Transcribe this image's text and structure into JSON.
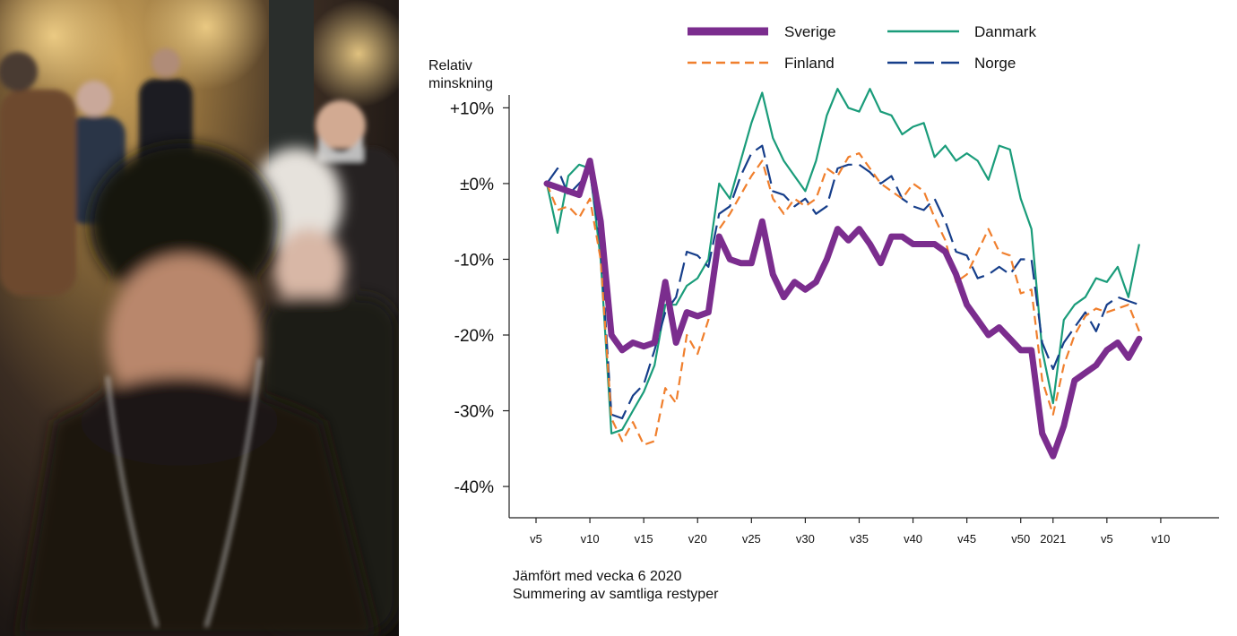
{
  "chart_data": {
    "type": "line",
    "ylabel": [
      "Relativ",
      "minskning"
    ],
    "ylim": [
      -42,
      13
    ],
    "xlim": [
      5,
      68
    ],
    "yticks": [
      {
        "value": 10,
        "label": "+10%"
      },
      {
        "value": 0,
        "label": "±0%"
      },
      {
        "value": -10,
        "label": "-10%"
      },
      {
        "value": -20,
        "label": "-20%"
      },
      {
        "value": -30,
        "label": "-30%"
      },
      {
        "value": -40,
        "label": "-40%"
      }
    ],
    "xticks": [
      {
        "value": 5,
        "label": "v5"
      },
      {
        "value": 10,
        "label": "v10"
      },
      {
        "value": 15,
        "label": "v15"
      },
      {
        "value": 20,
        "label": "v20"
      },
      {
        "value": 25,
        "label": "v25"
      },
      {
        "value": 30,
        "label": "v30"
      },
      {
        "value": 35,
        "label": "v35"
      },
      {
        "value": 40,
        "label": "v40"
      },
      {
        "value": 45,
        "label": "v45"
      },
      {
        "value": 50,
        "label": "v50"
      },
      {
        "value": 53,
        "label": "2021"
      },
      {
        "value": 58,
        "label": "v5"
      },
      {
        "value": 63,
        "label": "v10"
      }
    ],
    "legend_placement": "top",
    "grid": false,
    "series": [
      {
        "name": "Sverige",
        "color": "#7b2d8e",
        "style": "solid",
        "points": [
          [
            6,
            0
          ],
          [
            7,
            -0.5
          ],
          [
            8,
            -1
          ],
          [
            9,
            -1.5
          ],
          [
            10,
            3
          ],
          [
            11,
            -5
          ],
          [
            12,
            -20
          ],
          [
            13,
            -22
          ],
          [
            14,
            -21
          ],
          [
            15,
            -21.5
          ],
          [
            16,
            -21
          ],
          [
            17,
            -13
          ],
          [
            18,
            -21
          ],
          [
            19,
            -17
          ],
          [
            20,
            -17.5
          ],
          [
            21,
            -17
          ],
          [
            22,
            -7
          ],
          [
            23,
            -10
          ],
          [
            24,
            -10.5
          ],
          [
            25,
            -10.5
          ],
          [
            26,
            -5
          ],
          [
            27,
            -12
          ],
          [
            28,
            -15
          ],
          [
            29,
            -13
          ],
          [
            30,
            -14
          ],
          [
            31,
            -13
          ],
          [
            32,
            -10
          ],
          [
            33,
            -6
          ],
          [
            34,
            -7.5
          ],
          [
            35,
            -6
          ],
          [
            36,
            -8
          ],
          [
            37,
            -10.5
          ],
          [
            38,
            -7
          ],
          [
            39,
            -7
          ],
          [
            40,
            -8
          ],
          [
            41,
            -8
          ],
          [
            42,
            -8
          ],
          [
            43,
            -9
          ],
          [
            44,
            -12
          ],
          [
            45,
            -16
          ],
          [
            46,
            -18
          ],
          [
            47,
            -20
          ],
          [
            48,
            -19
          ],
          [
            49,
            -20.5
          ],
          [
            50,
            -22
          ],
          [
            51,
            -22
          ],
          [
            52,
            -33
          ],
          [
            53,
            -36
          ],
          [
            54,
            -32
          ],
          [
            55,
            -26
          ],
          [
            56,
            -25
          ],
          [
            57,
            -24
          ],
          [
            58,
            -22
          ],
          [
            59,
            -21
          ],
          [
            60,
            -23
          ],
          [
            61,
            -20.5
          ]
        ]
      },
      {
        "name": "Danmark",
        "color": "#1a9c7a",
        "style": "solid",
        "points": [
          [
            6,
            0
          ],
          [
            7,
            -6.5
          ],
          [
            8,
            1
          ],
          [
            9,
            2.5
          ],
          [
            10,
            2
          ],
          [
            11,
            -10
          ],
          [
            12,
            -33
          ],
          [
            13,
            -32.5
          ],
          [
            14,
            -30
          ],
          [
            15,
            -27.5
          ],
          [
            16,
            -24
          ],
          [
            17,
            -16
          ],
          [
            18,
            -16
          ],
          [
            19,
            -13.5
          ],
          [
            20,
            -12.5
          ],
          [
            21,
            -10
          ],
          [
            22,
            0
          ],
          [
            23,
            -2
          ],
          [
            24,
            3
          ],
          [
            25,
            8
          ],
          [
            26,
            12
          ],
          [
            27,
            6
          ],
          [
            28,
            3
          ],
          [
            29,
            1
          ],
          [
            30,
            -1
          ],
          [
            31,
            3
          ],
          [
            32,
            9
          ],
          [
            33,
            12.5
          ],
          [
            34,
            10
          ],
          [
            35,
            9.5
          ],
          [
            36,
            12.5
          ],
          [
            37,
            9.5
          ],
          [
            38,
            9
          ],
          [
            39,
            6.5
          ],
          [
            40,
            7.5
          ],
          [
            41,
            8
          ],
          [
            42,
            3.5
          ],
          [
            43,
            5
          ],
          [
            44,
            3
          ],
          [
            45,
            4
          ],
          [
            46,
            3
          ],
          [
            47,
            0.5
          ],
          [
            48,
            5
          ],
          [
            49,
            4.5
          ],
          [
            50,
            -2
          ],
          [
            51,
            -6
          ],
          [
            52,
            -22
          ],
          [
            53,
            -29
          ],
          [
            54,
            -18
          ],
          [
            55,
            -16
          ],
          [
            56,
            -15
          ],
          [
            57,
            -12.5
          ],
          [
            58,
            -13
          ],
          [
            59,
            -11
          ],
          [
            60,
            -15
          ],
          [
            61,
            -8
          ]
        ]
      },
      {
        "name": "Finland",
        "color": "#f07f2d",
        "style": "dashed",
        "points": [
          [
            6,
            0
          ],
          [
            7,
            -3.5
          ],
          [
            8,
            -3
          ],
          [
            9,
            -4.5
          ],
          [
            10,
            -2
          ],
          [
            11,
            -10
          ],
          [
            12,
            -31
          ],
          [
            13,
            -34
          ],
          [
            14,
            -31.5
          ],
          [
            15,
            -34.5
          ],
          [
            16,
            -34
          ],
          [
            17,
            -27
          ],
          [
            18,
            -29
          ],
          [
            19,
            -20
          ],
          [
            20,
            -22.5
          ],
          [
            21,
            -18
          ],
          [
            22,
            -6
          ],
          [
            23,
            -4
          ],
          [
            24,
            -1.5
          ],
          [
            25,
            1
          ],
          [
            26,
            3
          ],
          [
            27,
            -2
          ],
          [
            28,
            -4
          ],
          [
            29,
            -2
          ],
          [
            30,
            -3
          ],
          [
            31,
            -2
          ],
          [
            32,
            2
          ],
          [
            33,
            1
          ],
          [
            34,
            3.5
          ],
          [
            35,
            4
          ],
          [
            36,
            2
          ],
          [
            37,
            0
          ],
          [
            38,
            -1
          ],
          [
            39,
            -2
          ],
          [
            40,
            0
          ],
          [
            41,
            -1
          ],
          [
            42,
            -4.5
          ],
          [
            43,
            -7.5
          ],
          [
            44,
            -13
          ],
          [
            45,
            -12
          ],
          [
            46,
            -9
          ],
          [
            47,
            -6
          ],
          [
            48,
            -9
          ],
          [
            49,
            -9.5
          ],
          [
            50,
            -14.5
          ],
          [
            51,
            -14
          ],
          [
            52,
            -26
          ],
          [
            53,
            -30.5
          ],
          [
            54,
            -24
          ],
          [
            55,
            -20
          ],
          [
            56,
            -17.5
          ],
          [
            57,
            -16.5
          ],
          [
            58,
            -17
          ],
          [
            59,
            -16.5
          ],
          [
            60,
            -16
          ],
          [
            61,
            -19.5
          ]
        ]
      },
      {
        "name": "Norge",
        "color": "#163e8a",
        "style": "longdash",
        "points": [
          [
            6,
            0
          ],
          [
            7,
            2
          ],
          [
            8,
            -1.5
          ],
          [
            9,
            0
          ],
          [
            10,
            1.5
          ],
          [
            11,
            -8
          ],
          [
            12,
            -30.5
          ],
          [
            13,
            -31
          ],
          [
            14,
            -28
          ],
          [
            15,
            -26.5
          ],
          [
            16,
            -22
          ],
          [
            17,
            -17
          ],
          [
            18,
            -15
          ],
          [
            19,
            -9
          ],
          [
            20,
            -9.5
          ],
          [
            21,
            -11
          ],
          [
            22,
            -4
          ],
          [
            23,
            -3
          ],
          [
            24,
            1
          ],
          [
            25,
            4
          ],
          [
            26,
            5
          ],
          [
            27,
            -1
          ],
          [
            28,
            -1.5
          ],
          [
            29,
            -3
          ],
          [
            30,
            -2
          ],
          [
            31,
            -4
          ],
          [
            32,
            -3
          ],
          [
            33,
            2
          ],
          [
            34,
            2.5
          ],
          [
            35,
            2.5
          ],
          [
            36,
            1.5
          ],
          [
            37,
            0
          ],
          [
            38,
            1
          ],
          [
            39,
            -2
          ],
          [
            40,
            -3
          ],
          [
            41,
            -3.5
          ],
          [
            42,
            -2
          ],
          [
            43,
            -5
          ],
          [
            44,
            -9
          ],
          [
            45,
            -9.5
          ],
          [
            46,
            -12.5
          ],
          [
            47,
            -12
          ],
          [
            48,
            -11
          ],
          [
            49,
            -12
          ],
          [
            50,
            -10
          ],
          [
            51,
            -10
          ],
          [
            52,
            -21
          ],
          [
            53,
            -24.5
          ],
          [
            54,
            -21
          ],
          [
            55,
            -19
          ],
          [
            56,
            -17
          ],
          [
            57,
            -19.5
          ],
          [
            58,
            -16
          ],
          [
            59,
            -15
          ],
          [
            60,
            -15.5
          ],
          [
            61,
            -16
          ]
        ]
      }
    ],
    "notes": [
      "Jämfört med vecka 6 2020",
      "Summering av samtliga restyper"
    ]
  }
}
